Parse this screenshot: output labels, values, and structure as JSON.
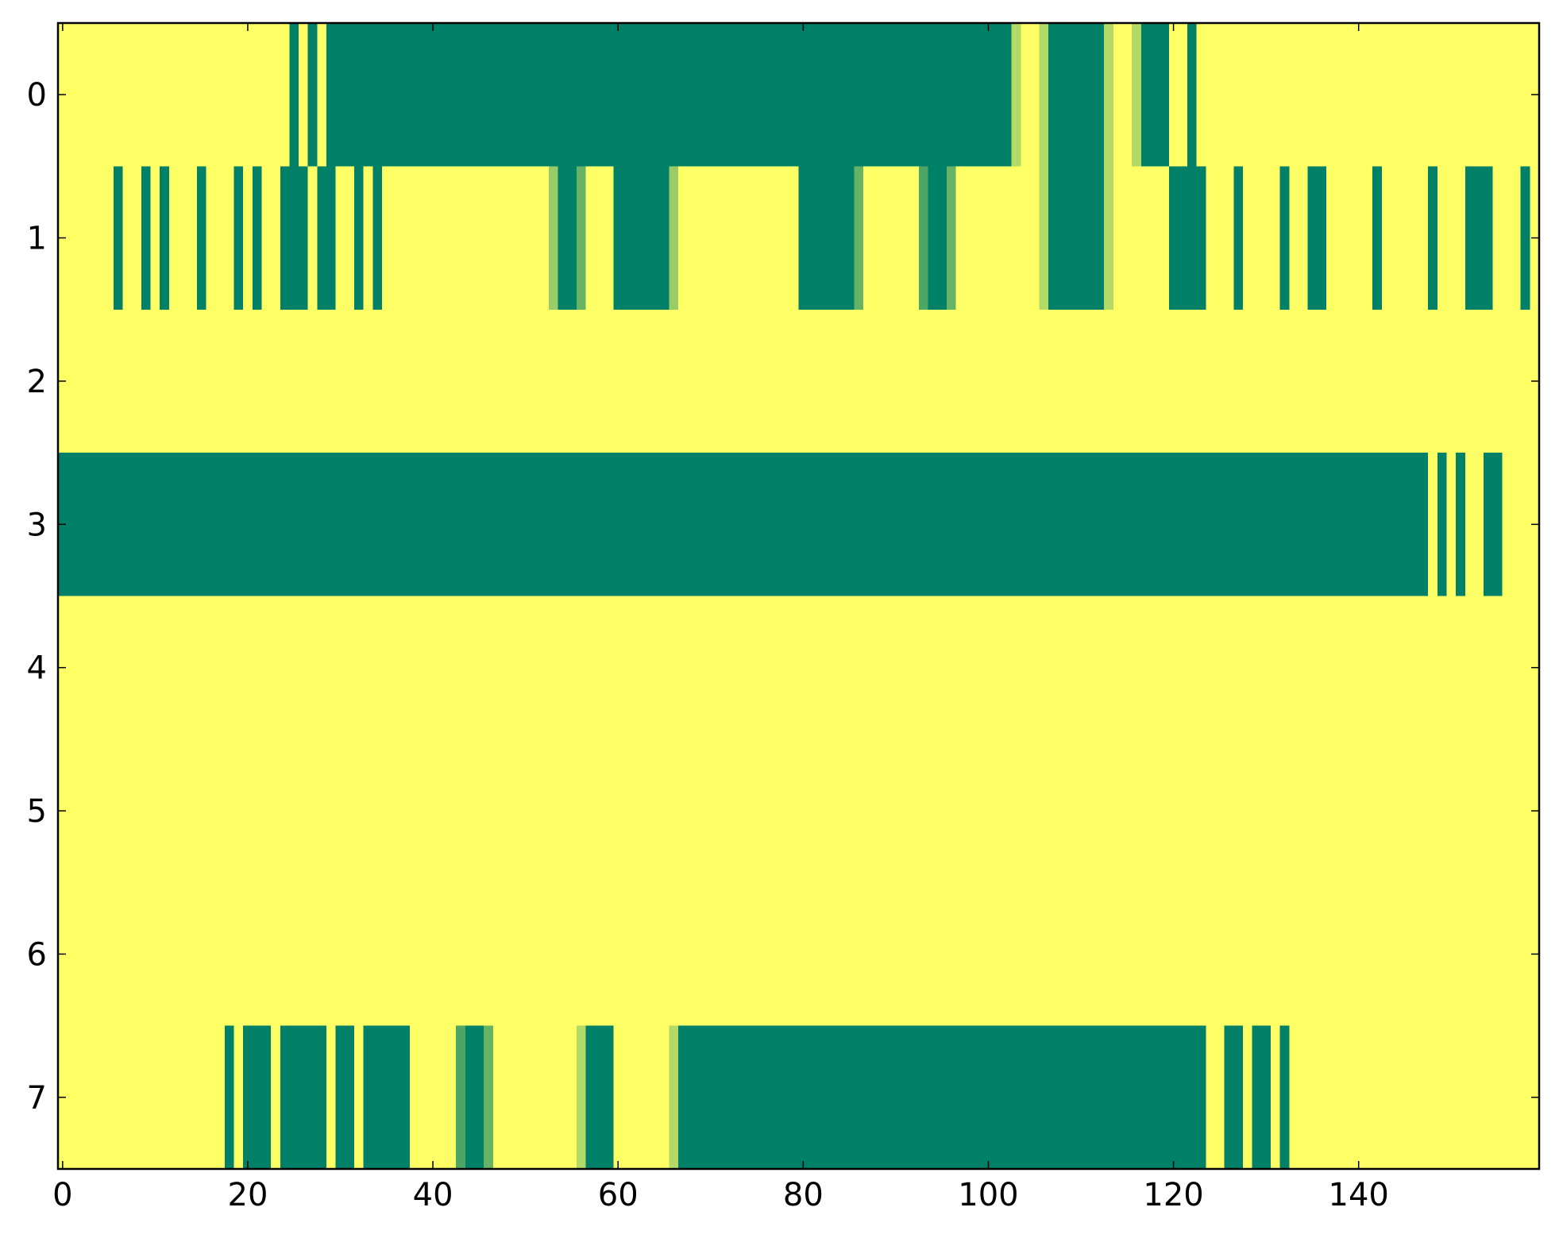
{
  "chart_data": {
    "type": "heatmap",
    "colormap": "summer",
    "vlim": [
      0,
      1
    ],
    "xlim": [
      -0.5,
      159.5
    ],
    "ylim": [
      7.5,
      -0.5
    ],
    "xticks": [
      0,
      20,
      40,
      60,
      80,
      100,
      120,
      140
    ],
    "yticks": [
      0,
      1,
      2,
      3,
      4,
      5,
      6,
      7
    ],
    "z": [
      [
        1,
        1,
        1,
        1,
        1,
        1,
        1,
        1,
        1,
        1,
        1,
        1,
        1,
        1,
        1,
        1,
        1,
        1,
        1,
        1,
        1,
        1,
        1,
        1,
        1,
        0,
        1,
        0,
        1,
        0,
        0,
        0,
        0,
        0,
        0,
        0,
        0,
        0,
        0,
        0,
        0,
        0,
        0,
        0,
        0,
        0,
        0,
        0,
        0,
        0,
        0,
        0,
        0,
        0,
        0,
        0,
        0,
        0,
        0,
        0,
        0,
        0,
        0,
        0,
        0,
        0,
        0,
        0,
        0,
        0,
        0,
        0,
        0,
        0,
        0,
        0,
        0,
        0,
        0,
        0,
        0,
        0,
        0,
        0,
        0,
        0,
        0,
        0,
        0,
        0,
        0,
        0,
        0,
        0,
        0,
        0,
        0,
        0,
        0,
        0,
        0,
        0,
        0,
        0.7,
        1,
        1,
        0.7,
        0,
        0,
        0,
        0,
        0,
        0,
        0.7,
        1,
        1,
        0.7,
        0,
        0,
        0,
        1,
        1,
        0,
        1,
        1,
        1,
        1,
        1,
        1,
        1,
        1,
        1,
        1,
        1,
        1,
        1,
        1,
        1,
        1,
        1,
        1,
        1,
        1,
        1,
        1,
        1,
        1,
        1,
        1,
        1,
        1,
        1,
        1,
        1,
        1,
        1,
        1,
        1,
        1,
        1
      ],
      [
        1,
        1,
        1,
        1,
        1,
        1,
        0,
        1,
        1,
        0,
        1,
        0,
        1,
        1,
        1,
        0,
        1,
        1,
        1,
        0,
        1,
        0,
        1,
        1,
        0,
        0,
        0,
        1,
        0,
        0,
        1,
        1,
        0,
        1,
        0,
        1,
        1,
        1,
        1,
        1,
        1,
        1,
        1,
        1,
        1,
        1,
        1,
        1,
        1,
        1,
        1,
        1,
        1,
        0.6,
        0,
        0,
        0.4,
        1,
        1,
        1,
        0,
        0,
        0,
        0,
        0,
        0,
        0.6,
        1,
        1,
        1,
        1,
        1,
        1,
        1,
        1,
        1,
        1,
        1,
        1,
        1,
        0,
        0,
        0,
        0,
        0,
        0,
        0.4,
        1,
        1,
        1,
        1,
        1,
        1,
        0.3,
        0,
        0,
        0.4,
        1,
        1,
        1,
        1,
        1,
        1,
        1,
        1,
        1,
        0.7,
        0,
        0,
        0,
        0,
        0,
        0,
        0.7,
        1,
        1,
        1,
        1,
        1,
        1,
        0,
        0,
        0,
        0,
        1,
        1,
        1,
        0,
        1,
        1,
        1,
        1,
        0,
        1,
        1,
        0,
        0,
        1,
        1,
        1,
        1,
        1,
        0,
        1,
        1,
        1,
        1,
        1,
        0,
        1,
        1,
        1,
        0,
        0,
        0,
        1,
        1,
        1,
        0,
        1
      ],
      [
        1,
        1,
        1,
        1,
        1,
        1,
        1,
        1,
        1,
        1,
        1,
        1,
        1,
        1,
        1,
        1,
        1,
        1,
        1,
        1,
        1,
        1,
        1,
        1,
        1,
        1,
        1,
        1,
        1,
        1,
        1,
        1,
        1,
        1,
        1,
        1,
        1,
        1,
        1,
        1,
        1,
        1,
        1,
        1,
        1,
        1,
        1,
        1,
        1,
        1,
        1,
        1,
        1,
        1,
        1,
        1,
        1,
        1,
        1,
        1,
        1,
        1,
        1,
        1,
        1,
        1,
        1,
        1,
        1,
        1,
        1,
        1,
        1,
        1,
        1,
        1,
        1,
        1,
        1,
        1,
        1,
        1,
        1,
        1,
        1,
        1,
        1,
        1,
        1,
        1,
        1,
        1,
        1,
        1,
        1,
        1,
        1,
        1,
        1,
        1,
        1,
        1,
        1,
        1,
        1,
        1,
        1,
        1,
        1,
        1,
        1,
        1,
        1,
        1,
        1,
        1,
        1,
        1,
        1,
        1,
        1,
        1,
        1,
        1,
        1,
        1,
        1,
        1,
        1,
        1,
        1,
        1,
        1,
        1,
        1,
        1,
        1,
        1,
        1,
        1,
        1,
        1,
        1,
        1,
        1,
        1,
        1,
        1,
        1,
        1,
        1,
        1,
        1,
        1,
        1,
        1,
        1,
        1,
        1,
        1
      ],
      [
        0,
        0,
        0,
        0,
        0,
        0,
        0,
        0,
        0,
        0,
        0,
        0,
        0,
        0,
        0,
        0,
        0,
        0,
        0,
        0,
        0,
        0,
        0,
        0,
        0,
        0,
        0,
        0,
        0,
        0,
        0,
        0,
        0,
        0,
        0,
        0,
        0,
        0,
        0,
        0,
        0,
        0,
        0,
        0,
        0,
        0,
        0,
        0,
        0,
        0,
        0,
        0,
        0,
        0,
        0,
        0,
        0,
        0,
        0,
        0,
        0,
        0,
        0,
        0,
        0,
        0,
        0,
        0,
        0,
        0,
        0,
        0,
        0,
        0,
        0,
        0,
        0,
        0,
        0,
        0,
        0,
        0,
        0,
        0,
        0,
        0,
        0,
        0,
        0,
        0,
        0,
        0,
        0,
        0,
        0,
        0,
        0,
        0,
        0,
        0,
        0,
        0,
        0,
        0,
        0,
        0,
        0,
        0,
        0,
        0,
        0,
        0,
        0,
        0,
        0,
        0,
        0,
        0,
        0,
        0,
        0,
        0,
        0,
        0,
        0,
        0,
        0,
        0,
        0,
        0,
        0,
        0,
        0,
        0,
        0,
        0,
        0,
        0,
        0,
        0,
        0,
        0,
        0,
        0,
        0,
        0,
        0,
        0,
        1,
        0,
        1,
        0,
        1,
        1,
        0,
        0,
        1,
        1,
        1,
        1
      ],
      [
        1,
        1,
        1,
        1,
        1,
        1,
        1,
        1,
        1,
        1,
        1,
        1,
        1,
        1,
        1,
        1,
        1,
        1,
        1,
        1,
        1,
        1,
        1,
        1,
        1,
        1,
        1,
        1,
        1,
        1,
        1,
        1,
        1,
        1,
        1,
        1,
        1,
        1,
        1,
        1,
        1,
        1,
        1,
        1,
        1,
        1,
        1,
        1,
        1,
        1,
        1,
        1,
        1,
        1,
        1,
        1,
        1,
        1,
        1,
        1,
        1,
        1,
        1,
        1,
        1,
        1,
        1,
        1,
        1,
        1,
        1,
        1,
        1,
        1,
        1,
        1,
        1,
        1,
        1,
        1,
        1,
        1,
        1,
        1,
        1,
        1,
        1,
        1,
        1,
        1,
        1,
        1,
        1,
        1,
        1,
        1,
        1,
        1,
        1,
        1,
        1,
        1,
        1,
        1,
        1,
        1,
        1,
        1,
        1,
        1,
        1,
        1,
        1,
        1,
        1,
        1,
        1,
        1,
        1,
        1,
        1,
        1,
        1,
        1,
        1,
        1,
        1,
        1,
        1,
        1,
        1,
        1,
        1,
        1,
        1,
        1,
        1,
        1,
        1,
        1,
        1,
        1,
        1,
        1,
        1,
        1,
        1,
        1,
        1,
        1,
        1,
        1,
        1,
        1,
        1,
        1,
        1,
        1,
        1,
        1
      ],
      [
        1,
        1,
        1,
        1,
        1,
        1,
        1,
        1,
        1,
        1,
        1,
        1,
        1,
        1,
        1,
        1,
        1,
        1,
        1,
        1,
        1,
        1,
        1,
        1,
        1,
        1,
        1,
        1,
        1,
        1,
        1,
        1,
        1,
        1,
        1,
        1,
        1,
        1,
        1,
        1,
        1,
        1,
        1,
        1,
        1,
        1,
        1,
        1,
        1,
        1,
        1,
        1,
        1,
        1,
        1,
        1,
        1,
        1,
        1,
        1,
        1,
        1,
        1,
        1,
        1,
        1,
        1,
        1,
        1,
        1,
        1,
        1,
        1,
        1,
        1,
        1,
        1,
        1,
        1,
        1,
        1,
        1,
        1,
        1,
        1,
        1,
        1,
        1,
        1,
        1,
        1,
        1,
        1,
        1,
        1,
        1,
        1,
        1,
        1,
        1,
        1,
        1,
        1,
        1,
        1,
        1,
        1,
        1,
        1,
        1,
        1,
        1,
        1,
        1,
        1,
        1,
        1,
        1,
        1,
        1,
        1,
        1,
        1,
        1,
        1,
        1,
        1,
        1,
        1,
        1,
        1,
        1,
        1,
        1,
        1,
        1,
        1,
        1,
        1,
        1,
        1,
        1,
        1,
        1,
        1,
        1,
        1,
        1,
        1,
        1,
        1,
        1,
        1,
        1,
        1,
        1,
        1,
        1,
        1,
        1
      ],
      [
        1,
        1,
        1,
        1,
        1,
        1,
        1,
        1,
        1,
        1,
        1,
        1,
        1,
        1,
        1,
        1,
        1,
        1,
        1,
        1,
        1,
        1,
        1,
        1,
        1,
        1,
        1,
        1,
        1,
        1,
        1,
        1,
        1,
        1,
        1,
        1,
        1,
        1,
        1,
        1,
        1,
        1,
        1,
        1,
        1,
        1,
        1,
        1,
        1,
        1,
        1,
        1,
        1,
        1,
        1,
        1,
        1,
        1,
        1,
        1,
        1,
        1,
        1,
        1,
        1,
        1,
        1,
        1,
        1,
        1,
        1,
        1,
        1,
        1,
        1,
        1,
        1,
        1,
        1,
        1,
        1,
        1,
        1,
        1,
        1,
        1,
        1,
        1,
        1,
        1,
        1,
        1,
        1,
        1,
        1,
        1,
        1,
        1,
        1,
        1,
        1,
        1,
        1,
        1,
        1,
        1,
        1,
        1,
        1,
        1,
        1,
        1,
        1,
        1,
        1,
        1,
        1,
        1,
        1,
        1,
        1,
        1,
        1,
        1,
        1,
        1,
        1,
        1,
        1,
        1,
        1,
        1,
        1,
        1,
        1,
        1,
        1,
        1,
        1,
        1,
        1,
        1,
        1,
        1,
        1,
        1,
        1,
        1,
        1,
        1,
        1,
        1,
        1,
        1,
        1,
        1,
        1,
        1,
        1,
        1
      ],
      [
        1,
        1,
        1,
        1,
        1,
        1,
        1,
        1,
        1,
        1,
        1,
        1,
        1,
        1,
        1,
        1,
        1,
        1,
        0,
        1,
        0,
        0,
        0,
        1,
        0,
        0,
        0,
        0,
        0,
        1,
        0,
        0,
        1,
        0,
        0,
        0,
        0,
        0,
        1,
        1,
        1,
        1,
        1,
        0.3,
        0,
        0,
        0.4,
        1,
        1,
        1,
        1,
        1,
        1,
        1,
        1,
        1,
        0.7,
        0,
        0,
        0,
        1,
        1,
        1,
        1,
        1,
        1,
        0.7,
        0,
        0,
        0,
        0,
        0,
        0,
        0,
        0,
        0,
        0,
        0,
        0,
        0,
        0,
        0,
        0,
        0,
        0,
        0,
        0,
        0,
        0,
        0,
        0,
        0,
        0,
        0,
        0,
        0,
        0,
        0,
        0,
        0,
        0,
        0,
        0,
        0,
        0,
        0,
        0,
        0,
        0,
        0,
        0,
        0,
        0,
        0,
        0,
        0,
        0,
        0,
        0,
        0,
        0,
        0,
        0,
        0,
        1,
        1,
        0,
        0,
        1,
        0,
        0,
        1,
        0,
        1,
        1,
        1,
        1,
        1,
        1,
        1,
        1,
        1,
        1,
        1,
        1,
        1,
        1,
        1,
        1,
        1,
        1,
        1,
        1,
        1,
        1,
        1,
        1,
        1,
        1,
        1
      ]
    ]
  }
}
